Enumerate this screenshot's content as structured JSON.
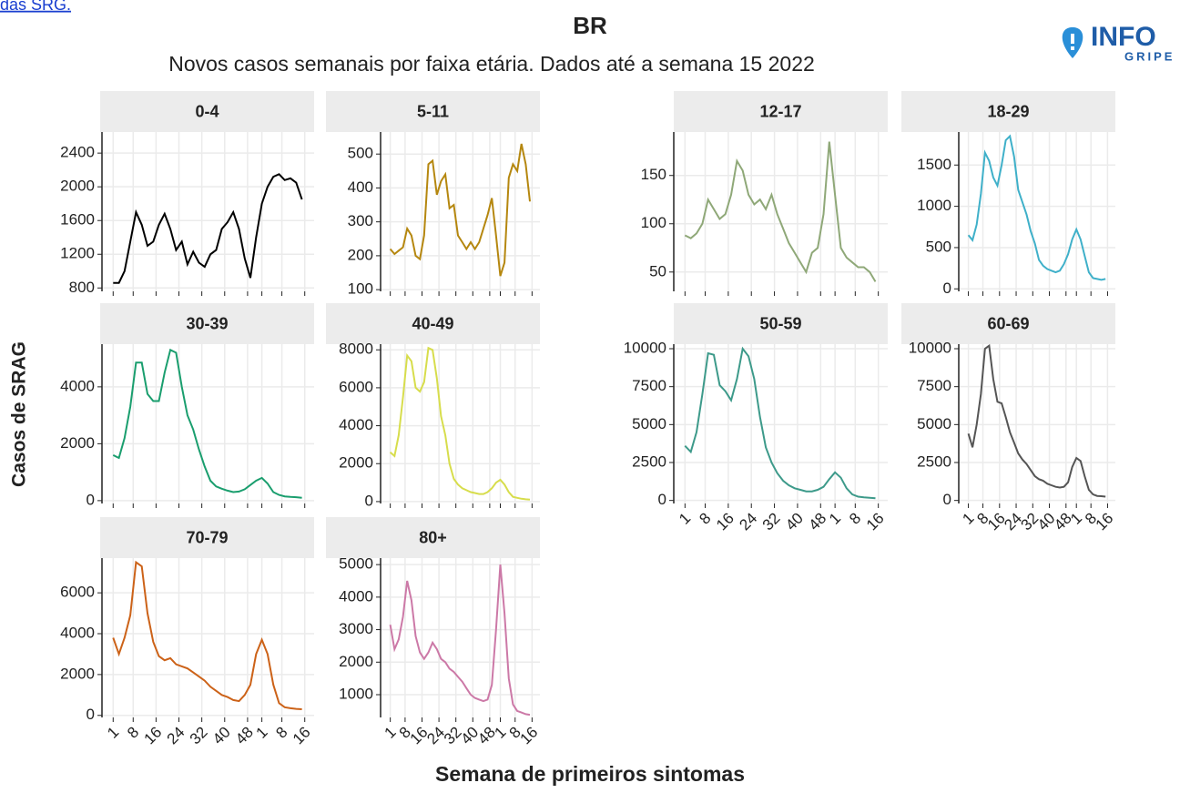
{
  "header": {
    "link": "das SRG.",
    "title": "BR",
    "subtitle": "Novos casos semanais por faixa etária. Dados até a semana 15 2022",
    "logo_top": "INFO",
    "logo_bottom": "GRIPE",
    "ylabel": "Casos de SRAG",
    "xlabel": "Semana de primeiros sintomas"
  },
  "chart_data": [
    {
      "type": "line",
      "title": "0-4",
      "color": "#000000",
      "grid": true,
      "x": [
        1,
        3,
        5,
        7,
        9,
        11,
        13,
        15,
        17,
        19,
        21,
        23,
        25,
        27,
        29,
        31,
        33,
        35,
        37,
        39,
        41,
        43,
        45,
        47,
        49,
        51,
        53,
        55,
        57,
        59,
        61,
        63,
        65,
        67
      ],
      "values": [
        860,
        860,
        1000,
        1350,
        1700,
        1550,
        1300,
        1350,
        1550,
        1680,
        1500,
        1250,
        1350,
        1080,
        1230,
        1100,
        1050,
        1200,
        1250,
        1500,
        1580,
        1700,
        1500,
        1150,
        920,
        1400,
        1800,
        2000,
        2120,
        2150,
        2080,
        2100,
        2050,
        1850
      ],
      "xlim": [
        -1,
        70
      ],
      "xticks": [
        1,
        8,
        16,
        24,
        32,
        40,
        48,
        {
          "value": 53,
          "label": "1"
        },
        {
          "value": 60,
          "label": "8"
        },
        {
          "value": 68,
          "label": "16"
        }
      ],
      "ylim": [
        760,
        2650
      ],
      "yticks": [
        800,
        1200,
        1600,
        2000,
        2400
      ]
    },
    {
      "type": "line",
      "title": "5-11",
      "color": "#b5870f",
      "grid": true,
      "x": [
        1,
        3,
        5,
        7,
        9,
        11,
        13,
        15,
        17,
        19,
        21,
        23,
        25,
        27,
        29,
        31,
        33,
        35,
        37,
        39,
        41,
        43,
        45,
        47,
        49,
        51,
        53,
        55,
        57,
        59,
        61,
        63,
        65,
        67
      ],
      "values": [
        220,
        205,
        215,
        225,
        280,
        260,
        200,
        190,
        260,
        470,
        480,
        380,
        420,
        440,
        340,
        350,
        260,
        240,
        220,
        240,
        220,
        240,
        280,
        320,
        370,
        260,
        140,
        180,
        430,
        470,
        450,
        530,
        470,
        360
      ],
      "xlim": [
        -1,
        70
      ],
      "xticks": [
        1,
        8,
        16,
        24,
        32,
        40,
        48,
        {
          "value": 53,
          "label": "1"
        },
        {
          "value": 60,
          "label": "8"
        },
        {
          "value": 68,
          "label": "16"
        }
      ],
      "ylim": [
        95,
        565
      ],
      "yticks": [
        100,
        200,
        300,
        400,
        500
      ]
    },
    {
      "type": "line",
      "title": "12-17",
      "color": "#8fa878",
      "grid": true,
      "x": [
        1,
        3,
        5,
        7,
        9,
        11,
        13,
        15,
        17,
        19,
        21,
        23,
        25,
        27,
        29,
        31,
        33,
        35,
        37,
        39,
        41,
        43,
        45,
        47,
        49,
        51,
        53,
        55,
        57,
        59,
        61,
        63,
        65,
        67
      ],
      "values": [
        88,
        85,
        90,
        100,
        125,
        115,
        105,
        110,
        130,
        165,
        155,
        130,
        120,
        125,
        115,
        130,
        110,
        95,
        80,
        70,
        60,
        50,
        70,
        75,
        110,
        185,
        130,
        75,
        65,
        60,
        55,
        55,
        50,
        40
      ],
      "xlim": [
        -1,
        70
      ],
      "xticks": [
        1,
        8,
        16,
        24,
        32,
        40,
        48,
        {
          "value": 53,
          "label": "1"
        },
        {
          "value": 60,
          "label": "8"
        },
        {
          "value": 68,
          "label": "16"
        }
      ],
      "ylim": [
        30,
        195
      ],
      "yticks": [
        50,
        100,
        150
      ]
    },
    {
      "type": "line",
      "title": "18-29",
      "color": "#3fb0c9",
      "grid": true,
      "x": [
        1,
        3,
        5,
        7,
        9,
        11,
        13,
        15,
        17,
        19,
        21,
        23,
        25,
        27,
        29,
        31,
        33,
        35,
        37,
        39,
        41,
        43,
        45,
        47,
        49,
        51,
        53,
        55,
        57,
        59,
        61,
        63,
        65,
        67
      ],
      "values": [
        650,
        590,
        780,
        1150,
        1650,
        1550,
        1350,
        1250,
        1500,
        1800,
        1850,
        1600,
        1200,
        1050,
        900,
        700,
        550,
        350,
        280,
        240,
        220,
        200,
        220,
        300,
        420,
        600,
        720,
        600,
        400,
        200,
        130,
        120,
        110,
        120
      ],
      "xlim": [
        -1,
        70
      ],
      "xticks": [
        1,
        8,
        16,
        24,
        32,
        40,
        48,
        {
          "value": 53,
          "label": "1"
        },
        {
          "value": 60,
          "label": "8"
        },
        {
          "value": 68,
          "label": "16"
        }
      ],
      "ylim": [
        -30,
        1900
      ],
      "yticks": [
        0,
        500,
        1000,
        1500
      ]
    },
    {
      "type": "line",
      "title": "30-39",
      "color": "#1a9e6e",
      "grid": true,
      "x": [
        1,
        3,
        5,
        7,
        9,
        11,
        13,
        15,
        17,
        19,
        21,
        23,
        25,
        27,
        29,
        31,
        33,
        35,
        37,
        39,
        41,
        43,
        45,
        47,
        49,
        51,
        53,
        55,
        57,
        59,
        61,
        63,
        65,
        67
      ],
      "values": [
        1600,
        1500,
        2200,
        3300,
        4850,
        4850,
        3750,
        3500,
        3500,
        4500,
        5300,
        5200,
        4000,
        3000,
        2500,
        1800,
        1200,
        700,
        500,
        420,
        350,
        300,
        320,
        400,
        550,
        700,
        800,
        600,
        300,
        200,
        150,
        130,
        120,
        100
      ],
      "xlim": [
        -1,
        70
      ],
      "xticks": [
        1,
        8,
        16,
        24,
        32,
        40,
        48,
        {
          "value": 53,
          "label": "1"
        },
        {
          "value": 60,
          "label": "8"
        },
        {
          "value": 68,
          "label": "16"
        }
      ],
      "ylim": [
        -100,
        5500
      ],
      "yticks": [
        0,
        2000,
        4000
      ]
    },
    {
      "type": "line",
      "title": "40-49",
      "color": "#d7dd4c",
      "grid": true,
      "x": [
        1,
        3,
        5,
        7,
        9,
        11,
        13,
        15,
        17,
        19,
        21,
        23,
        25,
        27,
        29,
        31,
        33,
        35,
        37,
        39,
        41,
        43,
        45,
        47,
        49,
        51,
        53,
        55,
        57,
        59,
        61,
        63,
        65,
        67
      ],
      "values": [
        2600,
        2400,
        3500,
        5500,
        7700,
        7400,
        6000,
        5800,
        6300,
        8100,
        8000,
        6500,
        4500,
        3500,
        2000,
        1200,
        900,
        700,
        600,
        500,
        450,
        400,
        400,
        500,
        700,
        1000,
        1150,
        900,
        500,
        250,
        200,
        150,
        120,
        100
      ],
      "xlim": [
        -1,
        70
      ],
      "xticks": [
        1,
        8,
        16,
        24,
        32,
        40,
        48,
        {
          "value": 53,
          "label": "1"
        },
        {
          "value": 60,
          "label": "8"
        },
        {
          "value": 68,
          "label": "16"
        }
      ],
      "ylim": [
        -100,
        8300
      ],
      "yticks": [
        0,
        2000,
        4000,
        6000,
        8000
      ]
    },
    {
      "type": "line",
      "title": "50-59",
      "color": "#3d9a8a",
      "grid": true,
      "x": [
        1,
        3,
        5,
        7,
        9,
        11,
        13,
        15,
        17,
        19,
        21,
        23,
        25,
        27,
        29,
        31,
        33,
        35,
        37,
        39,
        41,
        43,
        45,
        47,
        49,
        51,
        53,
        55,
        57,
        59,
        61,
        63,
        65,
        67
      ],
      "values": [
        3600,
        3200,
        4500,
        7000,
        9700,
        9600,
        7600,
        7200,
        6600,
        8000,
        10000,
        9500,
        8000,
        5500,
        3500,
        2500,
        1800,
        1300,
        1000,
        800,
        700,
        600,
        600,
        700,
        900,
        1400,
        1850,
        1500,
        800,
        400,
        250,
        200,
        180,
        150
      ],
      "xlim": [
        -1,
        70
      ],
      "xticks": [
        1,
        8,
        16,
        24,
        32,
        40,
        48,
        {
          "value": 53,
          "label": "1"
        },
        {
          "value": 60,
          "label": "8"
        },
        {
          "value": 68,
          "label": "16"
        }
      ],
      "ylim": [
        -200,
        10300
      ],
      "yticks": [
        0,
        2500,
        5000,
        7500,
        10000
      ]
    },
    {
      "type": "line",
      "title": "60-69",
      "color": "#555555",
      "grid": true,
      "x": [
        1,
        3,
        5,
        7,
        9,
        11,
        13,
        15,
        17,
        19,
        21,
        23,
        25,
        27,
        29,
        31,
        33,
        35,
        37,
        39,
        41,
        43,
        45,
        47,
        49,
        51,
        53,
        55,
        57,
        59,
        61,
        63,
        65,
        67
      ],
      "values": [
        4400,
        3500,
        5000,
        7000,
        10000,
        10200,
        8000,
        6500,
        6400,
        5500,
        4500,
        3800,
        3100,
        2700,
        2400,
        2000,
        1600,
        1400,
        1300,
        1100,
        1000,
        900,
        850,
        900,
        1200,
        2200,
        2800,
        2600,
        1600,
        700,
        400,
        300,
        280,
        250
      ],
      "xlim": [
        -1,
        70
      ],
      "xticks": [
        1,
        8,
        16,
        24,
        32,
        40,
        48,
        {
          "value": 53,
          "label": "1"
        },
        {
          "value": 60,
          "label": "8"
        },
        {
          "value": 68,
          "label": "16"
        }
      ],
      "ylim": [
        -200,
        10300
      ],
      "yticks": [
        0,
        2500,
        5000,
        7500,
        10000
      ]
    },
    {
      "type": "line",
      "title": "70-79",
      "color": "#cc6218",
      "grid": true,
      "x": [
        1,
        3,
        5,
        7,
        9,
        11,
        13,
        15,
        17,
        19,
        21,
        23,
        25,
        27,
        29,
        31,
        33,
        35,
        37,
        39,
        41,
        43,
        45,
        47,
        49,
        51,
        53,
        55,
        57,
        59,
        61,
        63,
        65,
        67
      ],
      "values": [
        3800,
        3000,
        3800,
        4900,
        7500,
        7300,
        5000,
        3600,
        2900,
        2700,
        2800,
        2500,
        2400,
        2300,
        2100,
        1900,
        1700,
        1400,
        1200,
        1000,
        900,
        750,
        700,
        1000,
        1500,
        3000,
        3700,
        3000,
        1500,
        600,
        400,
        350,
        320,
        300
      ],
      "xlim": [
        -1,
        70
      ],
      "xticks": [
        1,
        8,
        16,
        24,
        32,
        40,
        48,
        {
          "value": 53,
          "label": "1"
        },
        {
          "value": 60,
          "label": "8"
        },
        {
          "value": 68,
          "label": "16"
        }
      ],
      "ylim": [
        -100,
        7700
      ],
      "yticks": [
        0,
        2000,
        4000,
        6000
      ]
    },
    {
      "type": "line",
      "title": "80+",
      "color": "#cc79a7",
      "grid": true,
      "x": [
        1,
        3,
        5,
        7,
        9,
        11,
        13,
        15,
        17,
        19,
        21,
        23,
        25,
        27,
        29,
        31,
        33,
        35,
        37,
        39,
        41,
        43,
        45,
        47,
        49,
        51,
        53,
        55,
        57,
        59,
        61,
        63,
        65,
        67
      ],
      "values": [
        3150,
        2400,
        2700,
        3400,
        4500,
        3900,
        2800,
        2300,
        2100,
        2300,
        2600,
        2400,
        2100,
        2000,
        1800,
        1700,
        1550,
        1400,
        1200,
        1000,
        900,
        850,
        800,
        850,
        1300,
        3000,
        5000,
        3500,
        1500,
        700,
        500,
        450,
        400,
        380
      ],
      "xlim": [
        -1,
        70
      ],
      "xticks": [
        1,
        8,
        16,
        24,
        32,
        40,
        48,
        {
          "value": 53,
          "label": "1"
        },
        {
          "value": 60,
          "label": "8"
        },
        {
          "value": 68,
          "label": "16"
        }
      ],
      "ylim": [
        300,
        5200
      ],
      "yticks": [
        1000,
        2000,
        3000,
        4000,
        5000
      ]
    }
  ]
}
